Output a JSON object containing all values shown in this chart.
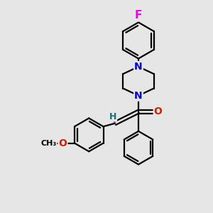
{
  "background_color": "#e6e6e6",
  "atom_colors": {
    "C": "#000000",
    "N": "#0000cc",
    "O": "#cc2200",
    "F": "#ee00ee",
    "H": "#007777"
  },
  "bond_color": "#000000",
  "bond_width": 1.6,
  "dbo": 0.12,
  "font_size": 10,
  "fig_width": 3.0,
  "fig_height": 3.0,
  "dpi": 100
}
